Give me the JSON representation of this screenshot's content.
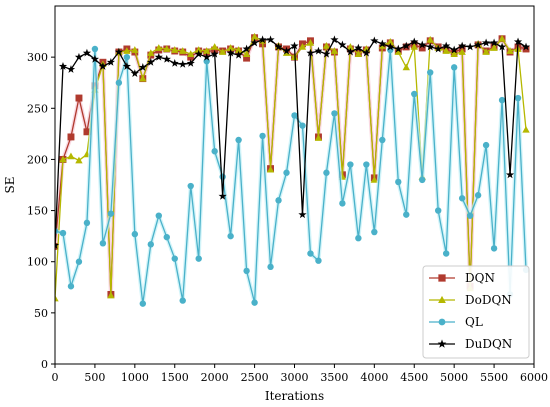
{
  "chart_data": {
    "type": "line",
    "xlabel": "Iterations",
    "ylabel": "SE",
    "xlim": [
      0,
      6000
    ],
    "ylim": [
      0,
      350
    ],
    "xticks": [
      0,
      500,
      1000,
      1500,
      2000,
      2500,
      3000,
      3500,
      4000,
      4500,
      5000,
      5500,
      6000
    ],
    "yticks": [
      0,
      50,
      100,
      150,
      200,
      250,
      300
    ],
    "grid": false,
    "legend_position": "bottom-right",
    "series": [
      {
        "name": "DQN",
        "color": "#b03a2e",
        "marker": "square",
        "x": [
          0,
          100,
          200,
          300,
          400,
          500,
          600,
          700,
          800,
          900,
          1000,
          1100,
          1200,
          1300,
          1400,
          1500,
          1600,
          1700,
          1800,
          1900,
          2000,
          2100,
          2200,
          2300,
          2400,
          2500,
          2600,
          2700,
          2800,
          2900,
          3000,
          3100,
          3200,
          3300,
          3400,
          3500,
          3600,
          3700,
          3800,
          3900,
          4000,
          4100,
          4200,
          4300,
          4400,
          4500,
          4600,
          4700,
          4800,
          4900,
          5000,
          5100,
          5200,
          5300,
          5400,
          5500,
          5600,
          5700,
          5800,
          5900
        ],
        "y": [
          115,
          200,
          222,
          260,
          227,
          272,
          295,
          68,
          305,
          308,
          305,
          279,
          302,
          307,
          308,
          306,
          305,
          300,
          306,
          305,
          307,
          306,
          308,
          306,
          299,
          319,
          313,
          191,
          310,
          308,
          300,
          313,
          316,
          222,
          310,
          305,
          185,
          308,
          304,
          307,
          182,
          309,
          314,
          306,
          310,
          312,
          309,
          316,
          310,
          307,
          305,
          308,
          76,
          312,
          306,
          310,
          318,
          305,
          310,
          308
        ]
      },
      {
        "name": "DoDQN",
        "color": "#b5b800",
        "marker": "triangle",
        "x": [
          0,
          100,
          200,
          300,
          400,
          500,
          600,
          700,
          800,
          900,
          1000,
          1100,
          1200,
          1300,
          1400,
          1500,
          1600,
          1700,
          1800,
          1900,
          2000,
          2100,
          2200,
          2300,
          2400,
          2500,
          2600,
          2700,
          2800,
          2900,
          3000,
          3100,
          3200,
          3300,
          3400,
          3500,
          3600,
          3700,
          3800,
          3900,
          4000,
          4100,
          4200,
          4300,
          4400,
          4500,
          4600,
          4700,
          4800,
          4900,
          5000,
          5100,
          5200,
          5300,
          5400,
          5500,
          5600,
          5700,
          5800,
          5900
        ],
        "y": [
          64,
          200,
          203,
          199,
          205,
          268,
          293,
          67,
          305,
          306,
          307,
          279,
          304,
          309,
          308,
          307,
          306,
          303,
          307,
          306,
          310,
          305,
          309,
          307,
          303,
          320,
          316,
          190,
          311,
          304,
          300,
          310,
          314,
          221,
          311,
          306,
          183,
          310,
          303,
          308,
          180,
          311,
          315,
          305,
          290,
          310,
          183,
          317,
          309,
          306,
          303,
          305,
          74,
          313,
          305,
          309,
          318,
          306,
          308,
          229
        ]
      },
      {
        "name": "QL",
        "color": "#4ab1c9",
        "marker": "circle",
        "x": [
          0,
          100,
          200,
          300,
          400,
          500,
          600,
          700,
          800,
          900,
          1000,
          1100,
          1200,
          1300,
          1400,
          1500,
          1600,
          1700,
          1800,
          1900,
          2000,
          2100,
          2200,
          2300,
          2400,
          2500,
          2600,
          2700,
          2800,
          2900,
          3000,
          3100,
          3200,
          3300,
          3400,
          3500,
          3600,
          3700,
          3800,
          3900,
          4000,
          4100,
          4200,
          4300,
          4400,
          4500,
          4600,
          4700,
          4800,
          4900,
          5000,
          5100,
          5200,
          5300,
          5400,
          5500,
          5600,
          5700,
          5800,
          5900
        ],
        "y": [
          130,
          128,
          76,
          100,
          138,
          308,
          118,
          147,
          275,
          300,
          127,
          59,
          117,
          145,
          124,
          103,
          62,
          174,
          103,
          296,
          208,
          183,
          125,
          219,
          91,
          60,
          223,
          95,
          160,
          187,
          243,
          233,
          108,
          101,
          187,
          245,
          157,
          195,
          123,
          195,
          129,
          219,
          307,
          178,
          146,
          264,
          180,
          285,
          150,
          108,
          290,
          162,
          145,
          165,
          214,
          113,
          258,
          68,
          260,
          92
        ]
      },
      {
        "name": "DuDQN",
        "color": "#000000",
        "marker": "star",
        "x": [
          0,
          100,
          200,
          300,
          400,
          500,
          600,
          700,
          800,
          900,
          1000,
          1100,
          1200,
          1300,
          1400,
          1500,
          1600,
          1700,
          1800,
          1900,
          2000,
          2100,
          2200,
          2300,
          2400,
          2500,
          2600,
          2700,
          2800,
          2900,
          3000,
          3100,
          3200,
          3300,
          3400,
          3500,
          3600,
          3700,
          3800,
          3900,
          4000,
          4100,
          4200,
          4300,
          4400,
          4500,
          4600,
          4700,
          4800,
          4900,
          5000,
          5100,
          5200,
          5300,
          5400,
          5500,
          5600,
          5700,
          5800,
          5900
        ],
        "y": [
          116,
          291,
          288,
          300,
          304,
          298,
          291,
          295,
          305,
          291,
          284,
          290,
          295,
          300,
          298,
          294,
          293,
          294,
          303,
          300,
          303,
          164,
          304,
          302,
          308,
          314,
          317,
          317,
          310,
          306,
          311,
          146,
          304,
          306,
          303,
          317,
          312,
          305,
          309,
          304,
          316,
          313,
          310,
          308,
          311,
          315,
          312,
          310,
          308,
          311,
          307,
          311,
          310,
          312,
          314,
          314,
          310,
          185,
          315,
          310
        ]
      }
    ]
  }
}
